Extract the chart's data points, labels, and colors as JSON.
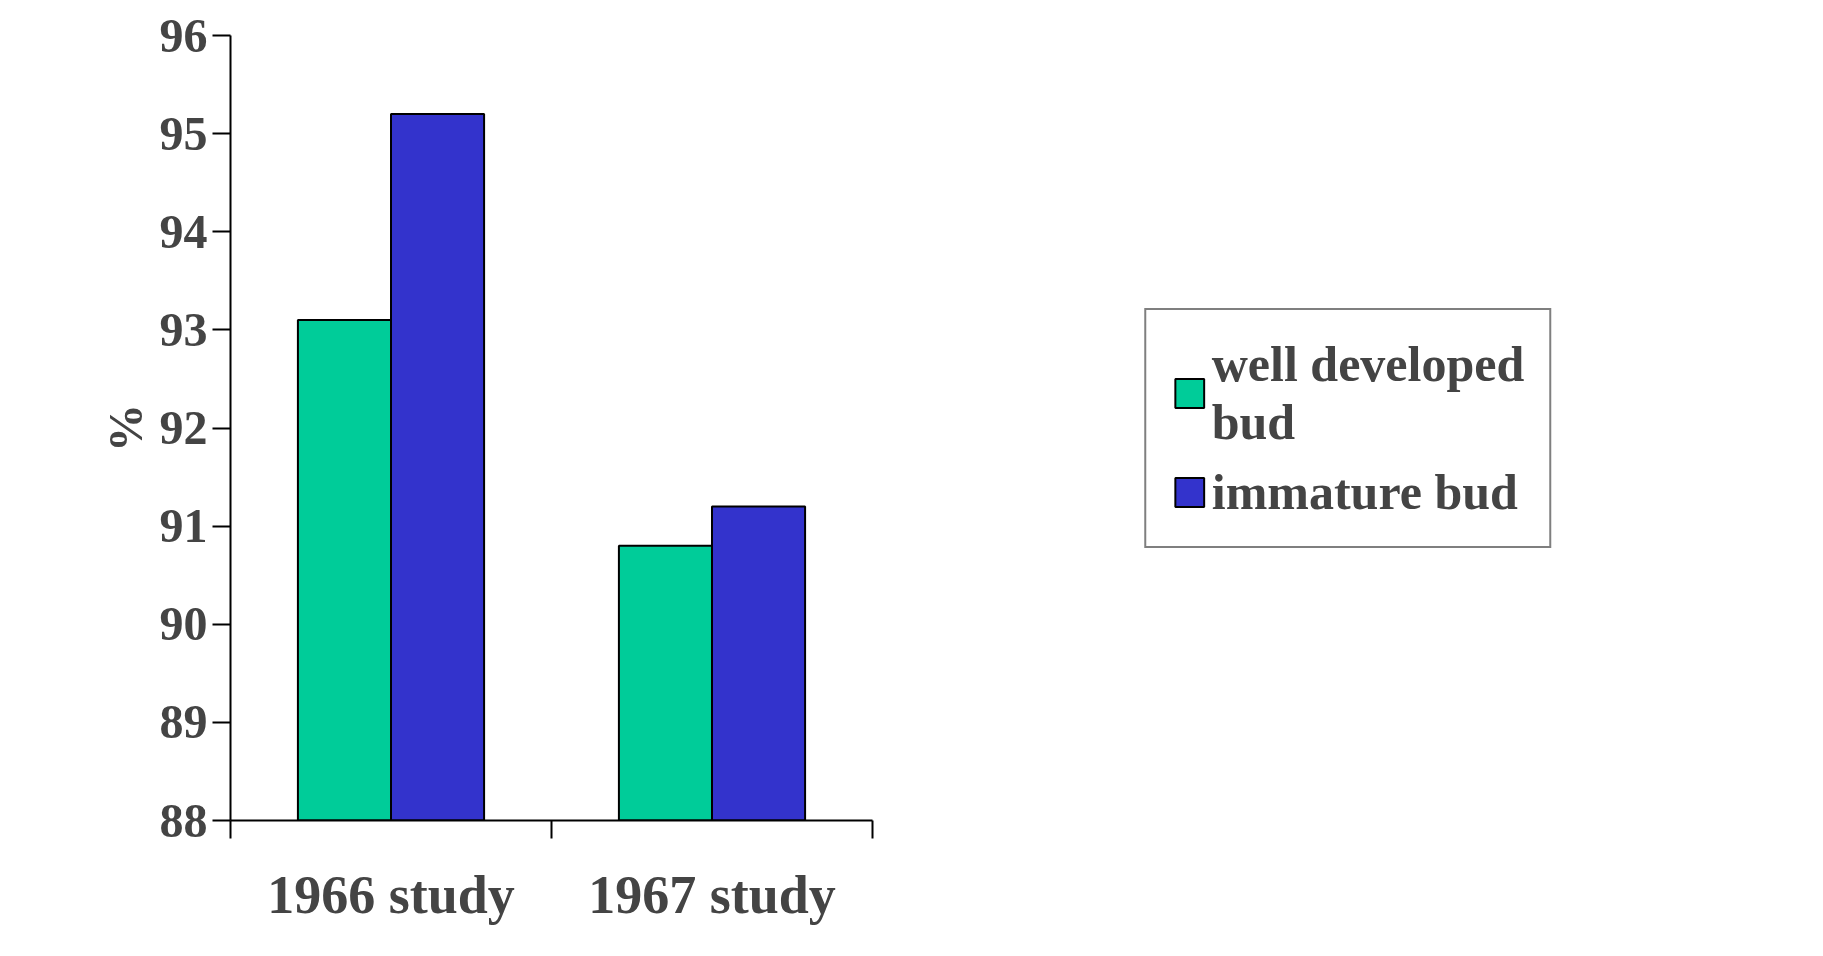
{
  "chart_data": {
    "type": "bar",
    "ylabel": "%",
    "categories": [
      "1966 study",
      "1967 study"
    ],
    "series": [
      {
        "name": "well developed bud",
        "color": "#00cc99",
        "values": [
          93.1,
          90.8
        ]
      },
      {
        "name": "immature bud",
        "color": "#3333cc",
        "values": [
          95.2,
          91.2
        ]
      }
    ],
    "ylim": [
      88,
      96
    ],
    "yticks": [
      88,
      89,
      90,
      91,
      92,
      93,
      94,
      95,
      96
    ],
    "grid": false,
    "legend": "right"
  }
}
